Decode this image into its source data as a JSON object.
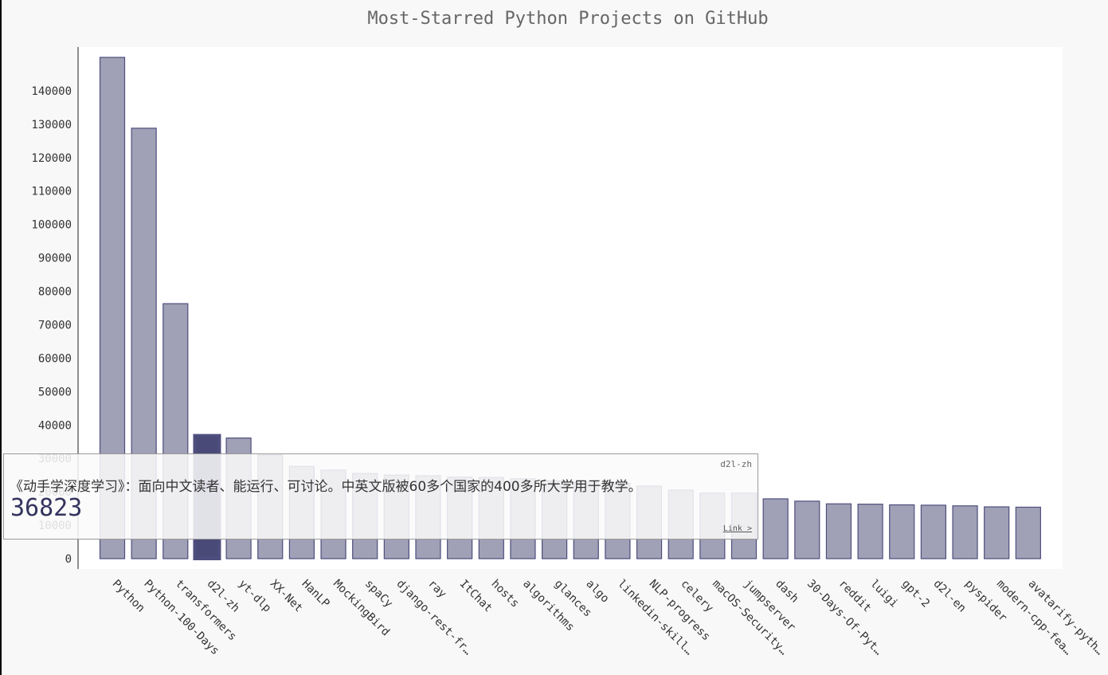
{
  "chart_data": {
    "type": "bar",
    "title": "Most-Starred Python Projects on GitHub",
    "xlabel": "",
    "ylabel": "",
    "ylim": [
      0,
      150000
    ],
    "yticks": [
      0,
      10000,
      20000,
      30000,
      40000,
      50000,
      60000,
      70000,
      80000,
      90000,
      100000,
      110000,
      120000,
      130000,
      140000
    ],
    "grid": false,
    "categories": [
      "Python",
      "Python-100-Days",
      "transformers",
      "d2l-zh",
      "yt-dlp",
      "XX-Net",
      "HanLP",
      "MockingBird",
      "spaCy",
      "django-rest-fr…",
      "ray",
      "ItChat",
      "hosts",
      "algorithms",
      "glances",
      "algo",
      "linkedin-skill…",
      "NLP-progress",
      "celery",
      "macOS-Security…",
      "jumpserver",
      "dash",
      "30-Days-Of-Pyt…",
      "reddit",
      "luigi",
      "gpt-2",
      "d2l-en",
      "pyspider",
      "modern-cpp-fea…",
      "avatarify-pyth…"
    ],
    "values": [
      150000,
      128800,
      76300,
      36823,
      36100,
      31000,
      27600,
      26500,
      25500,
      25000,
      24800,
      24400,
      24300,
      23900,
      23300,
      22900,
      22500,
      21700,
      20500,
      19600,
      19600,
      17900,
      17200,
      16400,
      16300,
      16100,
      16000,
      15800,
      15500,
      15400
    ],
    "highlight_index": 3,
    "bar_color": "#a0a0b6",
    "bar_stroke": "#4e4e7e",
    "highlight_color": "#4a4a78"
  },
  "tooltip": {
    "project": "d2l-zh",
    "description": "《动手学深度学习》：面向中文读者、能运行、可讨论。中英文版被60多个国家的400多所大学用于教学。",
    "value": "36823",
    "link_label": "Link >"
  }
}
